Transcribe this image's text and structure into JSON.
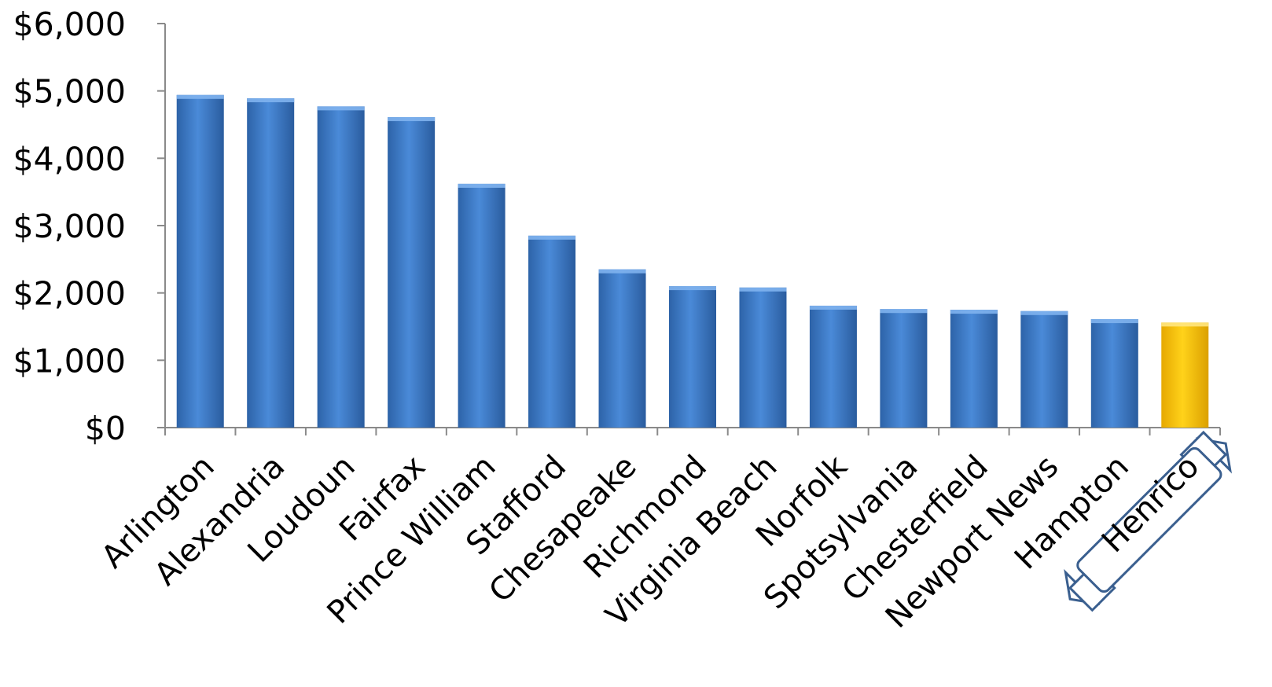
{
  "chart_data": {
    "type": "bar",
    "categories": [
      "Arlington",
      "Alexandria",
      "Loudoun",
      "Fairfax",
      "Prince William",
      "Stafford",
      "Chesapeake",
      "Richmond",
      "Virginia Beach",
      "Norfolk",
      "Spotsylvania",
      "Chesterfield",
      "Newport News",
      "Hampton",
      "Henrico"
    ],
    "values": [
      4940,
      4890,
      4770,
      4610,
      3620,
      2850,
      2350,
      2100,
      2080,
      1810,
      1760,
      1750,
      1730,
      1610,
      1560
    ],
    "ylim": [
      0,
      6000
    ],
    "yticks": [
      "$0",
      "$1,000",
      "$2,000",
      "$3,000",
      "$4,000",
      "$5,000",
      "$6,000"
    ],
    "highlight": "Henrico",
    "colors": {
      "bar": "#3f7fcf",
      "highlight": "#ffc20e",
      "banner": "#3a5f8f"
    },
    "grid": false,
    "legend": "none"
  }
}
